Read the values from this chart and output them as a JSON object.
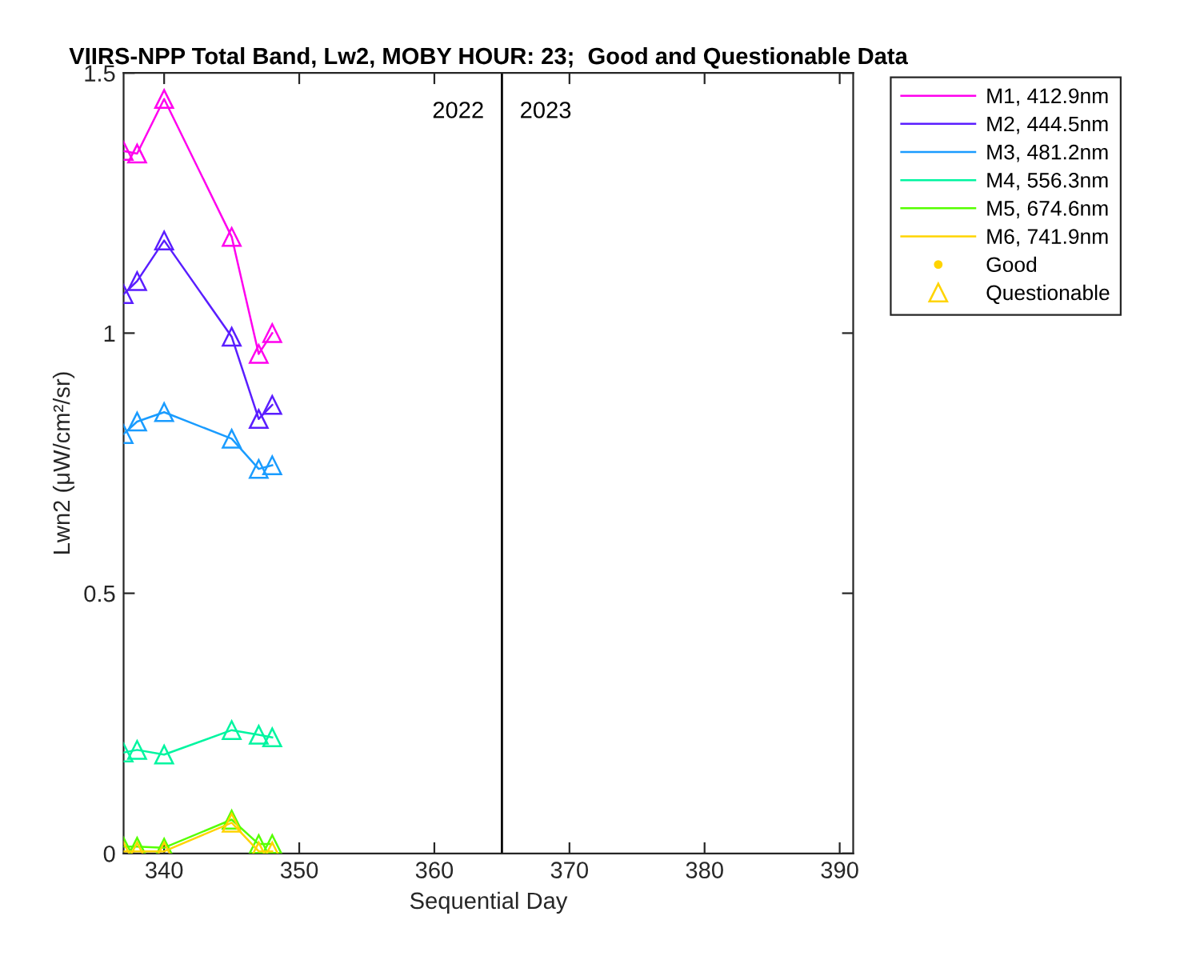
{
  "chart_data": {
    "type": "line",
    "title": "VIIRS-NPP Total Band, Lw2, MOBY HOUR: 23;  Good and Questionable Data",
    "xlabel": "Sequential Day",
    "ylabel": "Lwn2 (μW/cm²/sr)",
    "x": [
      337,
      338,
      340,
      345,
      347,
      348
    ],
    "xlim": [
      337,
      391
    ],
    "xticks": [
      340,
      350,
      360,
      370,
      380,
      390
    ],
    "ylim": [
      0,
      1.5
    ],
    "yticks": [
      0,
      0.5,
      1,
      1.5
    ],
    "legend": "top right",
    "marker": "triangle",
    "line_style": "solid",
    "series": [
      {
        "name": "M1, 412.9nm",
        "color": "#ff00ee",
        "values": [
          1.35,
          1.345,
          1.45,
          1.185,
          0.96,
          1.0
        ]
      },
      {
        "name": "M2, 444.5nm",
        "color": "#5a1eff",
        "values": [
          1.075,
          1.1,
          1.178,
          0.993,
          0.835,
          0.862
        ]
      },
      {
        "name": "M3, 481.2nm",
        "color": "#1a9cff",
        "values": [
          0.806,
          0.83,
          0.848,
          0.797,
          0.739,
          0.746
        ]
      },
      {
        "name": "M4, 556.3nm",
        "color": "#00f5a0",
        "values": [
          0.194,
          0.199,
          0.19,
          0.237,
          0.228,
          0.223
        ]
      },
      {
        "name": "M5, 674.6nm",
        "color": "#55ff00",
        "values": [
          0.013,
          0.013,
          0.011,
          0.065,
          0.018,
          0.018
        ]
      },
      {
        "name": "M6, 741.9nm",
        "color": "#ffd400",
        "values": [
          0.004,
          0.004,
          0.004,
          0.059,
          0.004,
          0.004
        ]
      },
      {
        "name": "Good",
        "type": "scatter",
        "marker": "circle",
        "color": "#ffd400",
        "values": [
          null,
          null,
          null,
          null,
          null,
          null
        ]
      },
      {
        "name": "Questionable",
        "type": "scatter",
        "marker": "triangle",
        "color": "#ffd400",
        "values": [
          null,
          null,
          null,
          null,
          null,
          null
        ]
      }
    ],
    "ref_lines": [
      {
        "axis": "x",
        "value": 365,
        "color": "#000000"
      }
    ],
    "annotations": [
      "2022",
      "2023"
    ]
  }
}
